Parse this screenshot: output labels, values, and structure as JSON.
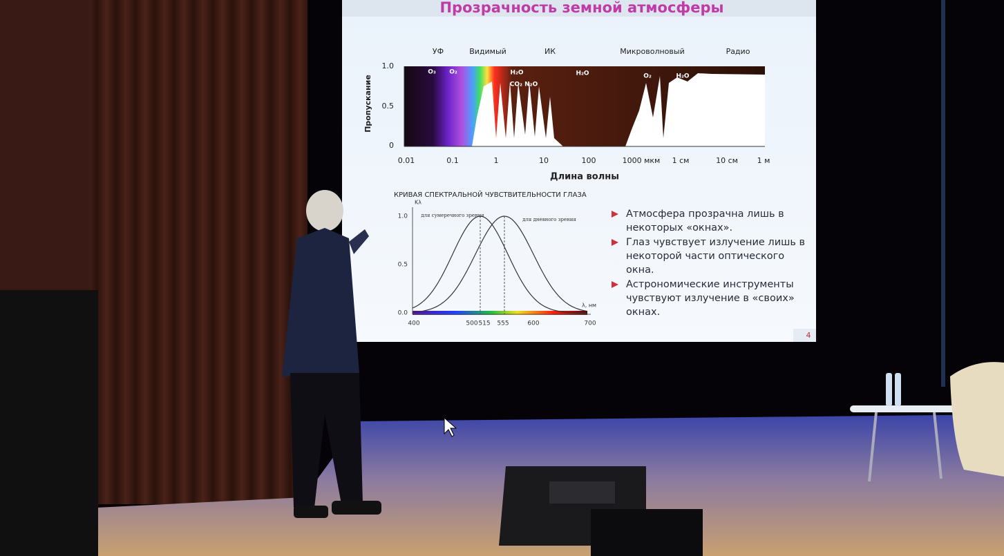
{
  "slide": {
    "title": "Прозрачность земной атмосферы",
    "chart1": {
      "bands": [
        "УФ",
        "Видимый",
        "ИК",
        "Микроволновый",
        "Радио"
      ],
      "y_label": "Пропускание",
      "y_ticks": [
        "1.0",
        "0.5",
        "0"
      ],
      "x_ticks": [
        "0.01",
        "0.1",
        "1",
        "10",
        "100",
        "1000 мкм",
        "1 см",
        "10 см",
        "1 м"
      ],
      "x_label": "Длина волны",
      "absorbers": [
        "O₃",
        "O₂",
        "H₂O",
        "CO₂ N₂O",
        "H₂O",
        "O₂",
        "H₂O"
      ]
    },
    "chart2": {
      "title": "КРИВАЯ СПЕКТРАЛЬНОЙ ЧУВСТВИТЕЛЬНОСТИ ГЛАЗА",
      "y_label": "Kλ",
      "y_ticks": [
        "1.0",
        "0.5",
        "0.0"
      ],
      "x_ticks": [
        "400",
        "500",
        "515",
        "555",
        "600",
        "700"
      ],
      "x_unit": "λ, нм",
      "curves": [
        "для сумеречного зрения",
        "для дневного зрения"
      ]
    },
    "bullets": [
      "Атмосфера прозрачна лишь в некоторых «окнах».",
      "Глаз чувствует излучение лишь в некоторой части оптического окна.",
      "Астрономические инструменты чувствуют излучение  в «своих» окнах."
    ],
    "page_number": "4"
  }
}
